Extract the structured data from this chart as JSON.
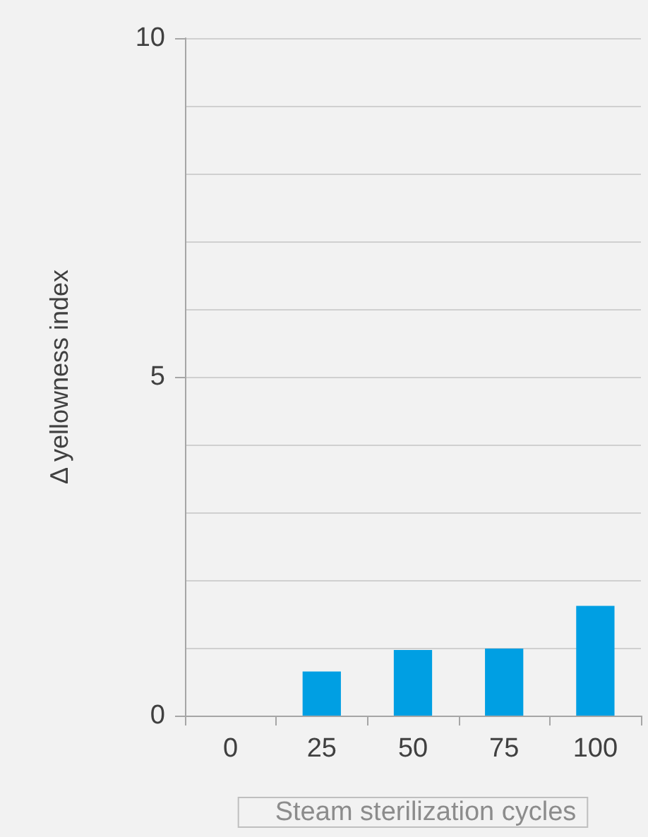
{
  "chart_data": {
    "type": "bar",
    "xlabel": "Steam sterilization cycles",
    "ylabel": "Δ yellowness index",
    "categories": [
      "0",
      "25",
      "50",
      "75",
      "100"
    ],
    "series": [
      {
        "color": "#009fe3",
        "values": [
          0,
          0.65,
          0.97,
          0.99,
          1.62
        ]
      }
    ],
    "ylim": [
      0,
      10
    ],
    "yticks": [
      0,
      {
        "value": 1,
        "label": null
      },
      {
        "value": 2,
        "label": null
      },
      {
        "value": 3,
        "label": null
      },
      {
        "value": 4,
        "label": null
      },
      5,
      {
        "value": 6,
        "label": null
      },
      {
        "value": 7,
        "label": null
      },
      {
        "value": 8,
        "label": null
      },
      {
        "value": 9,
        "label": null
      },
      10
    ],
    "grid": "y"
  }
}
